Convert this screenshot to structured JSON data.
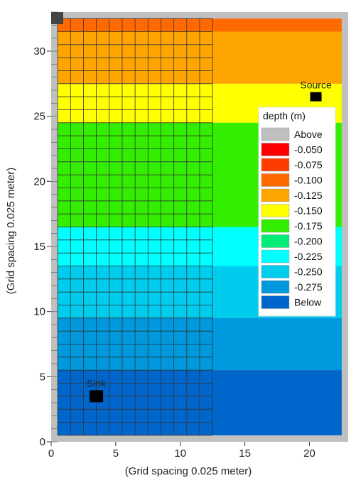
{
  "chart_data": {
    "type": "heatmap",
    "xlabel": "(Grid spacing 0.025 meter)",
    "ylabel": "(Grid spacing 0.025 meter)",
    "xlim": [
      0,
      23
    ],
    "ylim": [
      0,
      33
    ],
    "x_ticks": [
      0,
      5,
      10,
      15,
      20
    ],
    "y_ticks": [
      0,
      5,
      10,
      15,
      20,
      25,
      30
    ],
    "legend": {
      "title": "depth (m)",
      "placement": "right",
      "entries": [
        {
          "label": "Above",
          "color": "#c0c0c0"
        },
        {
          "label": "-0.050",
          "color": "#ff0000"
        },
        {
          "label": "-0.075",
          "color": "#ff3c00"
        },
        {
          "label": "-0.100",
          "color": "#ff6a00"
        },
        {
          "label": "-0.125",
          "color": "#ffa500"
        },
        {
          "label": "-0.150",
          "color": "#ffff00"
        },
        {
          "label": "-0.175",
          "color": "#33ee00"
        },
        {
          "label": "-0.200",
          "color": "#00ee77"
        },
        {
          "label": "-0.225",
          "color": "#00ffff"
        },
        {
          "label": "-0.250",
          "color": "#00ccee"
        },
        {
          "label": "-0.275",
          "color": "#0099dd"
        },
        {
          "label": "Below",
          "color": "#0066cc"
        }
      ]
    },
    "bands": [
      {
        "y0": 31.5,
        "y1": 32.5,
        "value": "-0.100"
      },
      {
        "y0": 27.5,
        "y1": 31.5,
        "value": "-0.125"
      },
      {
        "y0": 24.5,
        "y1": 27.5,
        "value": "-0.150"
      },
      {
        "y0": 16.5,
        "y1": 24.5,
        "value": "-0.175"
      },
      {
        "y0": 13.5,
        "y1": 16.5,
        "value": "-0.225"
      },
      {
        "y0": 9.5,
        "y1": 13.5,
        "value": "-0.250"
      },
      {
        "y0": 5.5,
        "y1": 9.5,
        "value": "-0.275"
      },
      {
        "y0": 0.5,
        "y1": 5.5,
        "value": "Below"
      }
    ],
    "annotations": [
      {
        "text": "Source",
        "x": 20.5,
        "y": 26.5
      },
      {
        "text": "Sink",
        "x": 3.5,
        "y": 3.5
      }
    ],
    "grid": true,
    "grid_region": {
      "x0": 0.5,
      "x1": 12.5,
      "y0": 0.5,
      "y1": 32.5
    }
  },
  "colors": {
    "background": "#c0c0c0",
    "grid_line": "#333333",
    "marker": "#000000"
  }
}
